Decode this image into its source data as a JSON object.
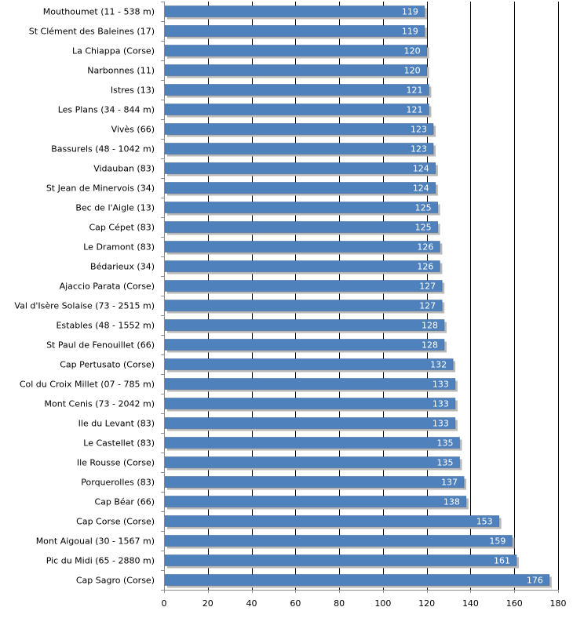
{
  "chart_data": {
    "type": "bar",
    "orientation": "horizontal",
    "title": "",
    "xlabel": "",
    "ylabel": "",
    "xlim": [
      0,
      180
    ],
    "ticks": [
      0,
      20,
      40,
      60,
      80,
      100,
      120,
      140,
      160,
      180
    ],
    "grid": true,
    "legend": "none",
    "colors": {
      "bar": "#4f81bd",
      "bar_edge": "#3a6597",
      "shadow": "#b8b8b8",
      "grid": "#000000",
      "axis": "#8c8c8c"
    },
    "categories": [
      "Mouthoumet (11 - 538 m)",
      "St Clément des Baleines (17)",
      "La Chiappa (Corse)",
      "Narbonnes (11)",
      "Istres (13)",
      "Les Plans (34 - 844 m)",
      "Vivès (66)",
      "Bassurels (48 - 1042 m)",
      "Vidauban (83)",
      "St Jean de Minervois (34)",
      "Bec de l'Aigle (13)",
      "Cap Cépet (83)",
      "Le Dramont (83)",
      "Bédarieux (34)",
      "Ajaccio Parata (Corse)",
      "Val d'Isère Solaise (73 - 2515 m)",
      "Estables (48 - 1552 m)",
      "St Paul de Fenouillet (66)",
      "Cap Pertusato (Corse)",
      "Col du Croix Millet (07 - 785 m)",
      "Mont Cenis (73 - 2042 m)",
      "Ile du Levant (83)",
      "Le Castellet (83)",
      "Ile Rousse (Corse)",
      "Porquerolles (83)",
      "Cap Béar (66)",
      "Cap Corse (Corse)",
      "Mont Aigoual (30 - 1567 m)",
      "Pic du Midi (65 - 2880 m)",
      "Cap Sagro (Corse)"
    ],
    "values": [
      119,
      119,
      120,
      120,
      121,
      121,
      123,
      123,
      124,
      124,
      125,
      125,
      126,
      126,
      127,
      127,
      128,
      128,
      132,
      133,
      133,
      133,
      135,
      135,
      137,
      138,
      153,
      159,
      161,
      176
    ]
  }
}
